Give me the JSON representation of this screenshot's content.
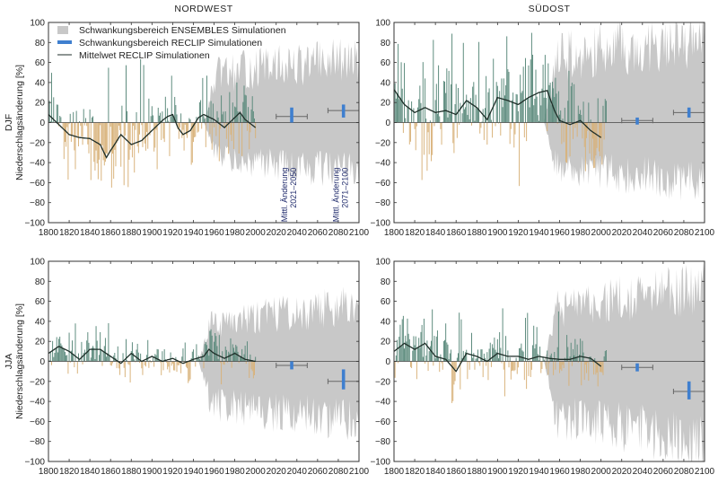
{
  "colors": {
    "positive_bars": "#5b8a7c",
    "negative_bars": "#d8b27a",
    "ensembles_band": "#c8c8c8",
    "reclip_range": "#3f7fcf",
    "mean_line": "#1e2e28",
    "frame": "#333333"
  },
  "legend": {
    "ensembles": "Schwankungsbereich ENSEMBLES Simulationen",
    "reclip": "Schwankungsbereich RECLIP Simulationen",
    "mean": "Mittelwet RECLIP Simulationen"
  },
  "annotations": {
    "a2050": [
      "Mittl. Änderung",
      "2021–2050"
    ],
    "a2100": [
      "Mittl. Änderung",
      "2071–2100"
    ]
  },
  "chart_data": [
    {
      "id": "djf-nw",
      "type": "bar",
      "title": "NORDWEST",
      "season": "DJF",
      "ylabel": "Niederschlagsänderung [%]",
      "xlim": [
        1800,
        2100
      ],
      "ylim": [
        -100,
        100
      ],
      "xticks": [
        "1800",
        "1820",
        "1840",
        "1860",
        "1880",
        "1900",
        "1920",
        "1940",
        "1960",
        "1980",
        "2000",
        "2020",
        "2040",
        "2060",
        "2080",
        "2100"
      ],
      "yticks": [
        "100",
        "80",
        "60",
        "40",
        "20",
        "0",
        "−20",
        "−40",
        "−60",
        "−80",
        "−100"
      ],
      "obs_years": [
        1800,
        2000
      ],
      "mean_line": {
        "x": [
          1800,
          1810,
          1820,
          1830,
          1840,
          1850,
          1856,
          1860,
          1870,
          1880,
          1890,
          1900,
          1910,
          1915,
          1920,
          1925,
          1930,
          1937,
          1945,
          1950,
          1960,
          1970,
          1980,
          1985,
          1990,
          2000
        ],
        "y": [
          8,
          -2,
          -12,
          -15,
          -16,
          -22,
          -35,
          -28,
          -12,
          -22,
          -18,
          -8,
          2,
          6,
          8,
          -5,
          -12,
          -8,
          5,
          8,
          3,
          -5,
          5,
          10,
          3,
          -5
        ]
      },
      "obs_range": [
        -65,
        75
      ],
      "band": {
        "x": [
          1950,
          2000,
          2050,
          2100
        ],
        "upper": [
          50,
          60,
          65,
          70
        ],
        "lower": [
          -35,
          -45,
          -50,
          -55
        ]
      },
      "reclip": [
        {
          "year": 2035,
          "whisker": [
            2020,
            2050
          ],
          "bar": [
            0,
            15
          ],
          "mean": 6
        },
        {
          "year": 2085,
          "whisker": [
            2070,
            2100
          ],
          "bar": [
            5,
            18
          ],
          "mean": 12
        }
      ]
    },
    {
      "id": "djf-so",
      "type": "bar",
      "title": "SÜDOST",
      "season": "DJF",
      "xlim": [
        1800,
        2100
      ],
      "ylim": [
        -100,
        100
      ],
      "xticks": [
        "1800",
        "1820",
        "1840",
        "1860",
        "1880",
        "1900",
        "1920",
        "1940",
        "1960",
        "1980",
        "2000",
        "2020",
        "2040",
        "2060",
        "2080",
        "2100"
      ],
      "yticks": [
        "100",
        "80",
        "60",
        "40",
        "20",
        "0",
        "−20",
        "−40",
        "−60",
        "−80",
        "−100"
      ],
      "obs_years": [
        1800,
        2005
      ],
      "mean_line": {
        "x": [
          1800,
          1810,
          1820,
          1830,
          1840,
          1850,
          1860,
          1870,
          1880,
          1890,
          1900,
          1910,
          1920,
          1930,
          1940,
          1948,
          1955,
          1960,
          1970,
          1980,
          1990,
          2000
        ],
        "y": [
          33,
          18,
          10,
          15,
          10,
          12,
          8,
          22,
          15,
          3,
          25,
          22,
          18,
          25,
          30,
          32,
          12,
          2,
          -2,
          2,
          -8,
          -15
        ]
      },
      "obs_range": [
        -65,
        100
      ],
      "band": {
        "x": [
          1945,
          2000,
          2050,
          2100
        ],
        "upper": [
          70,
          80,
          90,
          100
        ],
        "lower": [
          -50,
          -55,
          -60,
          -65
        ]
      },
      "reclip": [
        {
          "year": 2035,
          "whisker": [
            2020,
            2050
          ],
          "bar": [
            -2,
            5
          ],
          "mean": 2
        },
        {
          "year": 2085,
          "whisker": [
            2070,
            2100
          ],
          "bar": [
            5,
            15
          ],
          "mean": 10
        }
      ]
    },
    {
      "id": "jja-nw",
      "type": "bar",
      "title": "",
      "season": "JJA",
      "ylabel": "Niederschlagsänderung [%]",
      "xlim": [
        1800,
        2100
      ],
      "ylim": [
        -100,
        100
      ],
      "xticks": [
        "1800",
        "1820",
        "1840",
        "1860",
        "1880",
        "1900",
        "1920",
        "1940",
        "1960",
        "1980",
        "2000",
        "2020",
        "2040",
        "2060",
        "2080",
        "2100"
      ],
      "yticks": [
        "100",
        "80",
        "60",
        "40",
        "20",
        "0",
        "−20",
        "−40",
        "−60",
        "−80",
        "−100"
      ],
      "obs_years": [
        1800,
        2000
      ],
      "mean_line": {
        "x": [
          1800,
          1810,
          1820,
          1830,
          1840,
          1850,
          1860,
          1870,
          1880,
          1890,
          1900,
          1910,
          1920,
          1930,
          1940,
          1950,
          1955,
          1960,
          1970,
          1980,
          1990,
          2000
        ],
        "y": [
          8,
          15,
          10,
          2,
          12,
          12,
          5,
          -2,
          8,
          0,
          5,
          0,
          3,
          -2,
          2,
          5,
          12,
          8,
          3,
          8,
          2,
          0
        ]
      },
      "obs_range": [
        -30,
        40
      ],
      "band": {
        "x": [
          1945,
          2000,
          2050,
          2100
        ],
        "upper": [
          40,
          50,
          55,
          65
        ],
        "lower": [
          -45,
          -55,
          -60,
          -70
        ]
      },
      "reclip": [
        {
          "year": 2035,
          "whisker": [
            2020,
            2050
          ],
          "bar": [
            -8,
            0
          ],
          "mean": -4
        },
        {
          "year": 2085,
          "whisker": [
            2070,
            2100
          ],
          "bar": [
            -28,
            -8
          ],
          "mean": -20
        }
      ]
    },
    {
      "id": "jja-so",
      "type": "bar",
      "title": "",
      "season": "JJA",
      "xlim": [
        1800,
        2100
      ],
      "ylim": [
        -100,
        100
      ],
      "xticks": [
        "1800",
        "1820",
        "1840",
        "1860",
        "1880",
        "1900",
        "1920",
        "1940",
        "1960",
        "1980",
        "2000",
        "2020",
        "2040",
        "2060",
        "2080",
        "2100"
      ],
      "yticks": [
        "100",
        "80",
        "60",
        "40",
        "20",
        "0",
        "−20",
        "−40",
        "−60",
        "−80",
        "−100"
      ],
      "obs_years": [
        1800,
        2005
      ],
      "mean_line": {
        "x": [
          1800,
          1810,
          1820,
          1830,
          1840,
          1850,
          1860,
          1870,
          1880,
          1890,
          1900,
          1910,
          1920,
          1930,
          1940,
          1950,
          1960,
          1970,
          1980,
          1990,
          2000
        ],
        "y": [
          10,
          18,
          12,
          18,
          5,
          2,
          -10,
          8,
          5,
          0,
          8,
          5,
          5,
          2,
          5,
          3,
          2,
          2,
          5,
          3,
          -5
        ]
      },
      "obs_range": [
        -50,
        55
      ],
      "band": {
        "x": [
          1945,
          2000,
          2050,
          2100
        ],
        "upper": [
          55,
          65,
          75,
          85
        ],
        "lower": [
          -60,
          -70,
          -80,
          -95
        ]
      },
      "reclip": [
        {
          "year": 2035,
          "whisker": [
            2020,
            2050
          ],
          "bar": [
            -10,
            -2
          ],
          "mean": -6
        },
        {
          "year": 2085,
          "whisker": [
            2070,
            2100
          ],
          "bar": [
            -38,
            -20
          ],
          "mean": -30
        }
      ]
    }
  ]
}
